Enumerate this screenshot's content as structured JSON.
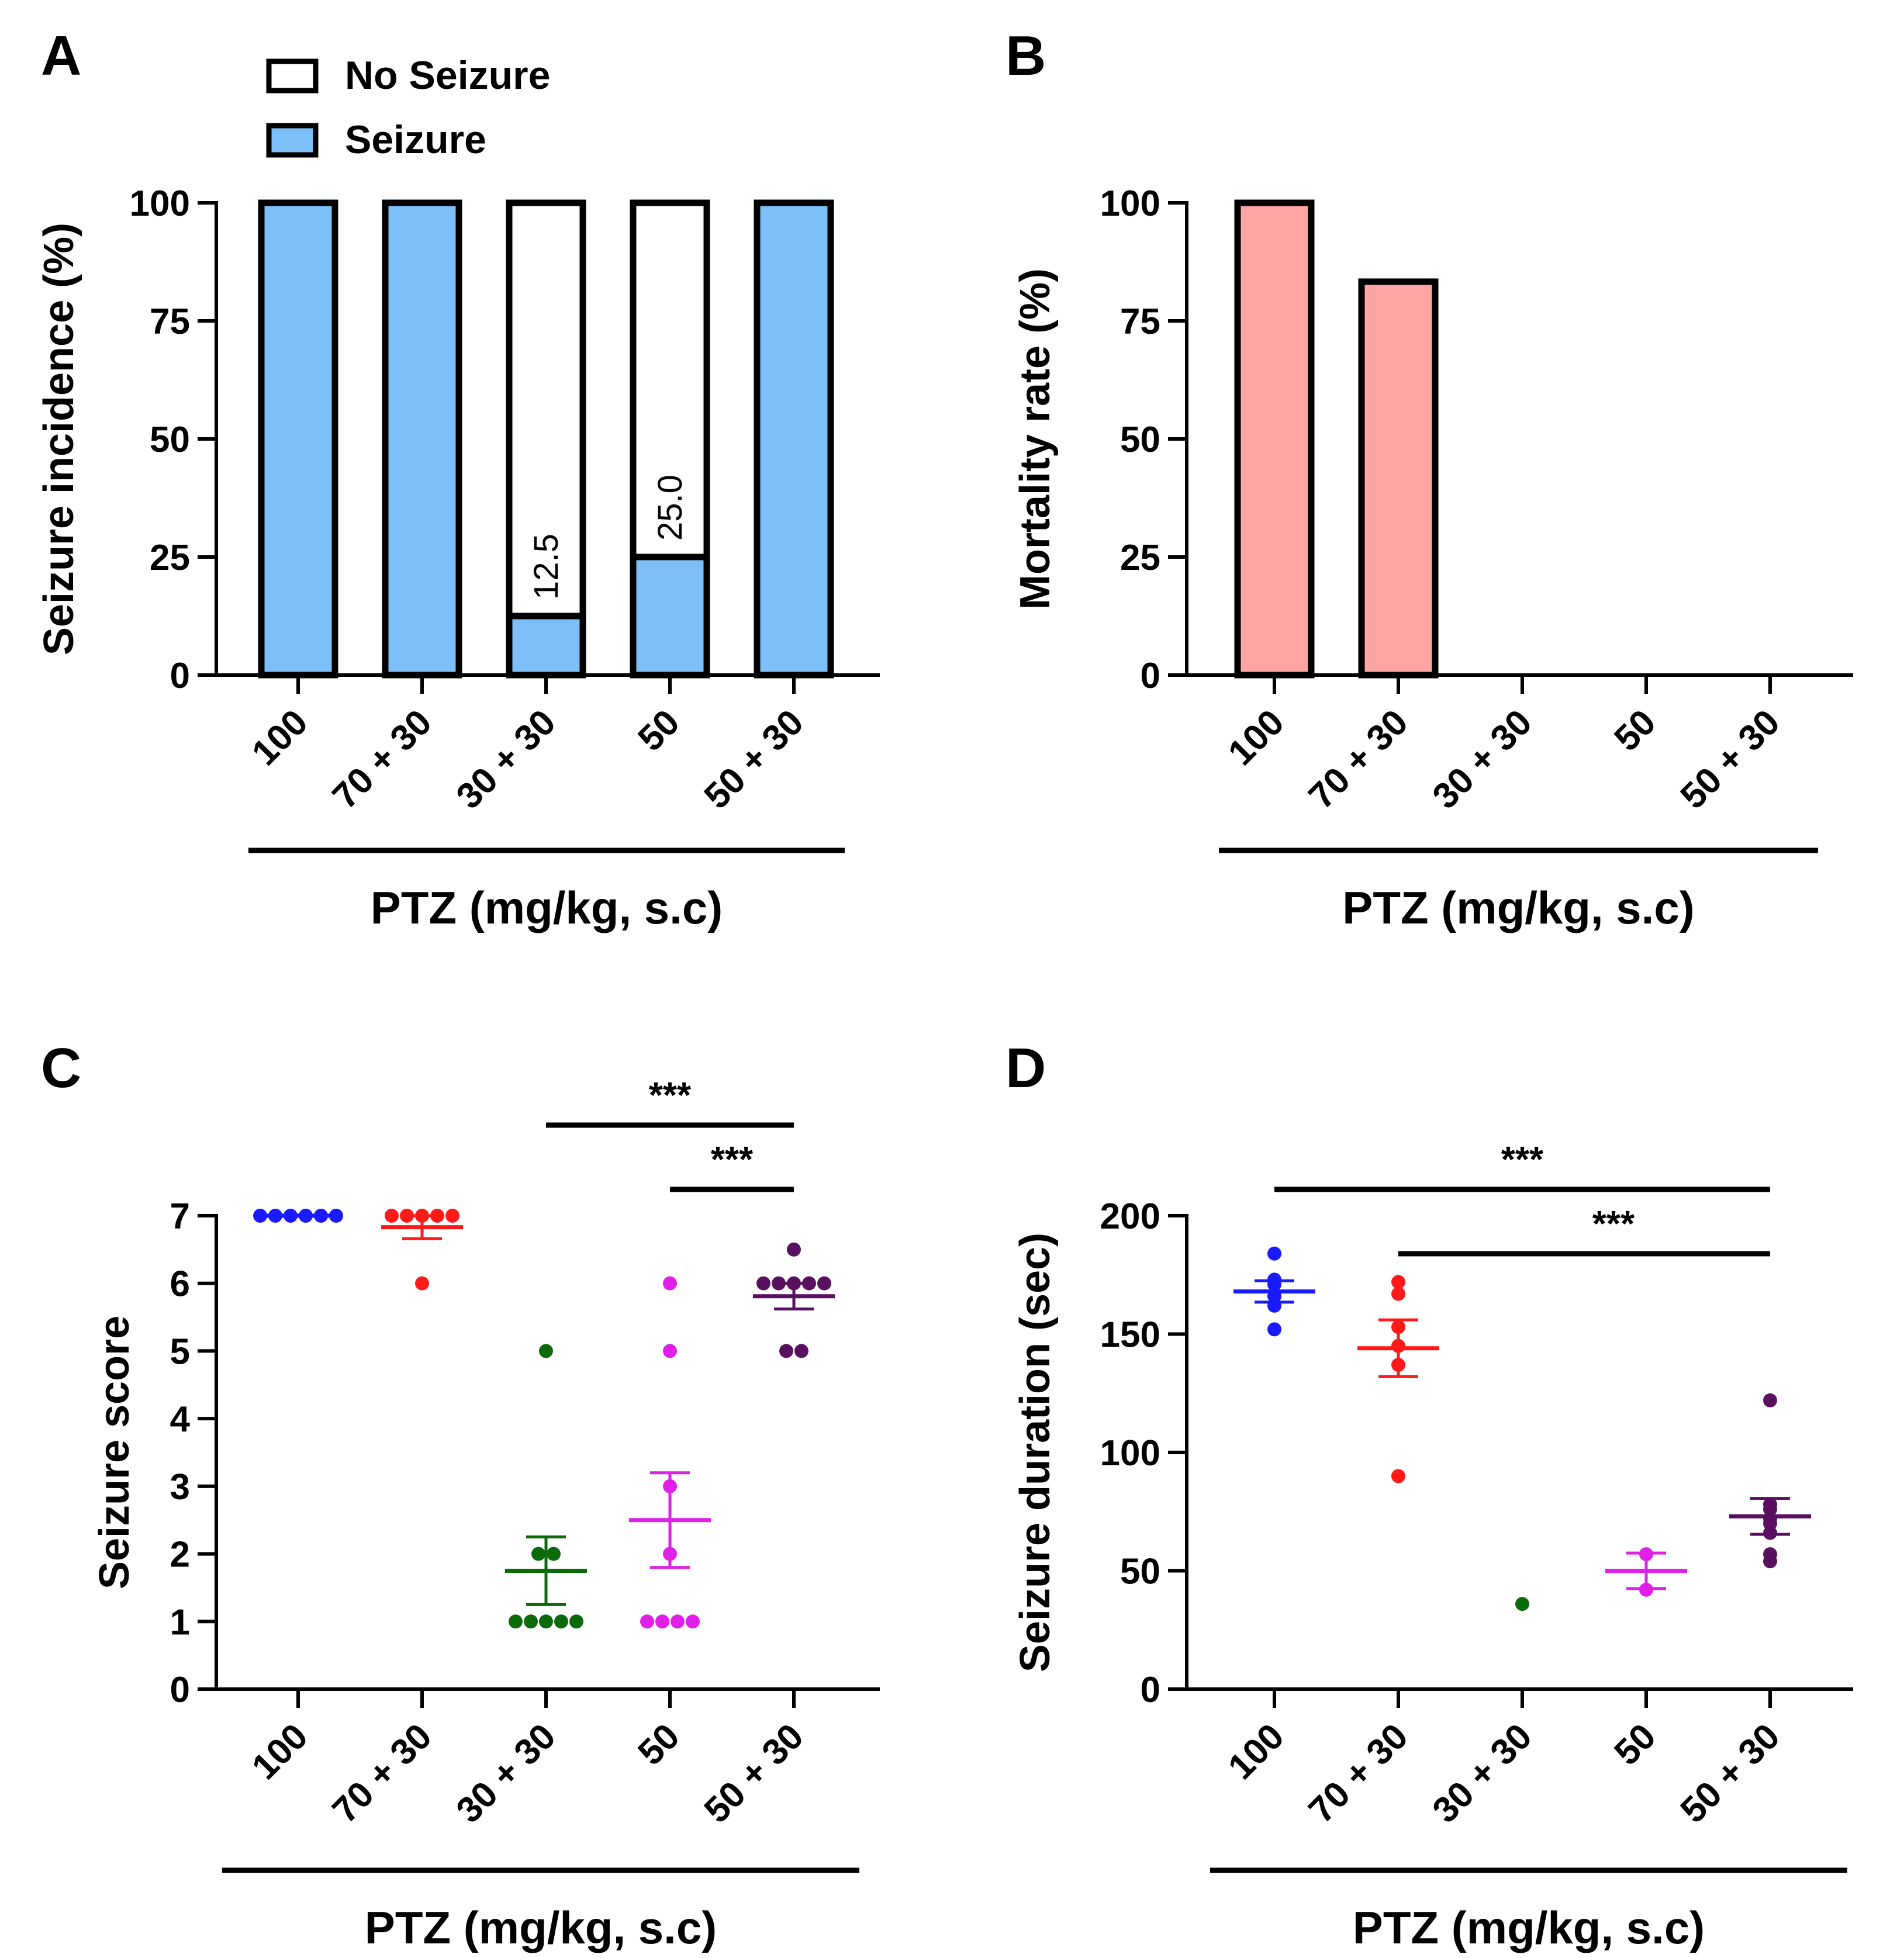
{
  "panels": {
    "A": "A",
    "B": "B",
    "C": "C",
    "D": "D"
  },
  "colors": {
    "seizure": "#7cbff9",
    "no_seizure": "#ffffff",
    "mortality": "#fca5a3",
    "group_100": "#1a1aff",
    "group_70_30": "#ff1a1a",
    "group_30_30": "#0b6b0b",
    "group_50": "#e020e8",
    "group_50_30": "#5a1060"
  },
  "chart_data": [
    {
      "id": "A",
      "type": "bar",
      "stacked": true,
      "title": "",
      "categories": [
        "100",
        "70 + 30",
        "30 + 30",
        "50",
        "50 + 30"
      ],
      "series": [
        {
          "name": "Seizure",
          "values": [
            100,
            100,
            12.5,
            25.0,
            100
          ]
        },
        {
          "name": "No Seizure",
          "values": [
            0,
            0,
            87.5,
            75.0,
            0
          ]
        }
      ],
      "data_labels": [
        "",
        "",
        "12.5",
        "25.0",
        ""
      ],
      "legend": [
        "No Seizure",
        "Seizure"
      ],
      "legend_position": "top",
      "ylabel": "Seizure incidence (%)",
      "xlabel": "PTZ (mg/kg, s.c)",
      "ylim": [
        0,
        100
      ],
      "yticks": [
        "0",
        "25",
        "50",
        "75",
        "100"
      ]
    },
    {
      "id": "B",
      "type": "bar",
      "title": "",
      "categories": [
        "100",
        "70 + 30",
        "30 + 30",
        "50",
        "50 + 30"
      ],
      "values": [
        100,
        83.3,
        0,
        0,
        0
      ],
      "ylabel": "Mortality rate (%)",
      "xlabel": "PTZ (mg/kg, s.c)",
      "ylim": [
        0,
        100
      ],
      "yticks": [
        "0",
        "25",
        "50",
        "75",
        "100"
      ]
    },
    {
      "id": "C",
      "type": "scatter",
      "title": "",
      "categories": [
        "100",
        "70 + 30",
        "30 + 30",
        "50",
        "50 + 30"
      ],
      "groups": [
        {
          "name": "100",
          "points": [
            7,
            7,
            7,
            7,
            7,
            7
          ],
          "mean": 7.0,
          "sem": 0
        },
        {
          "name": "70 + 30",
          "points": [
            7,
            7,
            7,
            7,
            7,
            6
          ],
          "mean": 6.83,
          "sem": 0.17
        },
        {
          "name": "30 + 30",
          "points": [
            5,
            2,
            2,
            1,
            1,
            1,
            1,
            1
          ],
          "mean": 1.75,
          "sem": 0.5
        },
        {
          "name": "50",
          "points": [
            6,
            5,
            3,
            2,
            1,
            1,
            1,
            1
          ],
          "mean": 2.5,
          "sem": 0.7
        },
        {
          "name": "50 + 30",
          "points": [
            6.5,
            6,
            6,
            6,
            6,
            6,
            5,
            5
          ],
          "mean": 5.81,
          "sem": 0.19
        }
      ],
      "significance": [
        {
          "from": "30 + 30",
          "to": "50 + 30",
          "label": "***"
        },
        {
          "from": "50",
          "to": "50 + 30",
          "label": "***"
        }
      ],
      "ylabel": "Seizure score",
      "xlabel": "PTZ (mg/kg, s.c)",
      "ylim": [
        0,
        7
      ],
      "yticks": [
        "0",
        "1",
        "2",
        "3",
        "4",
        "5",
        "6",
        "7"
      ]
    },
    {
      "id": "D",
      "type": "scatter",
      "title": "",
      "categories": [
        "100",
        "70 + 30",
        "30 + 30",
        "50",
        "50 + 30"
      ],
      "groups": [
        {
          "name": "100",
          "points": [
            184,
            173,
            171,
            166,
            162,
            152
          ],
          "mean": 168,
          "sem": 4.5
        },
        {
          "name": "70 + 30",
          "points": [
            172,
            167,
            153,
            145,
            137,
            90
          ],
          "mean": 144,
          "sem": 12
        },
        {
          "name": "30 + 30",
          "points": [
            36
          ],
          "mean": null,
          "sem": null
        },
        {
          "name": "50",
          "points": [
            57,
            42
          ],
          "mean": 50,
          "sem": 7.5
        },
        {
          "name": "50 + 30",
          "points": [
            122,
            78,
            76,
            72,
            70,
            66,
            57,
            54
          ],
          "mean": 73,
          "sem": 7.6
        }
      ],
      "significance": [
        {
          "from": "100",
          "to": "50 + 30",
          "label": "***"
        },
        {
          "from": "70 + 30",
          "to": "50 + 30",
          "label": "***"
        }
      ],
      "ylabel": "Seizure duration (sec)",
      "xlabel": "PTZ (mg/kg, s.c)",
      "ylim": [
        0,
        200
      ],
      "yticks": [
        "0",
        "50",
        "100",
        "150",
        "200"
      ]
    }
  ]
}
